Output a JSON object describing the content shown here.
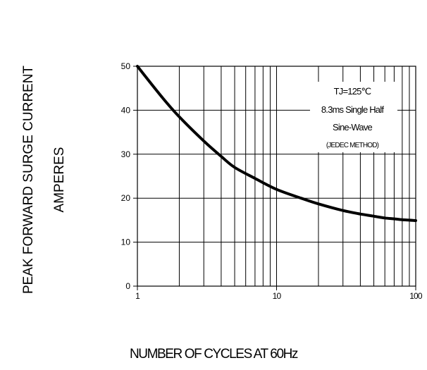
{
  "chart_data": {
    "type": "line",
    "ylabel_lines": [
      "PEAK FORWARD SURGE CURRENT",
      "AMPERES"
    ],
    "xlabel": "NUMBER OF CYCLES AT 60Hz",
    "x_scale": "log",
    "xlim": [
      1,
      100
    ],
    "ylim": [
      0,
      50
    ],
    "xticks": [
      1,
      10,
      100
    ],
    "yticks": [
      0,
      10,
      20,
      30,
      40,
      50
    ],
    "grid": true,
    "annotation": [
      "TJ=125℃",
      "8.3ms Single Half",
      "Sine-Wave",
      "(JEDEC METHOD)"
    ],
    "series": [
      {
        "x": [
          1,
          1.5,
          2,
          3,
          4,
          5,
          7,
          10,
          15,
          20,
          30,
          40,
          50,
          60,
          70,
          80,
          100
        ],
        "y": [
          50,
          43,
          38.5,
          33,
          29.5,
          27,
          24.5,
          22,
          20,
          18.7,
          17.2,
          16.4,
          15.9,
          15.5,
          15.3,
          15.1,
          14.9
        ]
      }
    ],
    "colors": {
      "line": "#000000",
      "grid": "#000000"
    }
  }
}
